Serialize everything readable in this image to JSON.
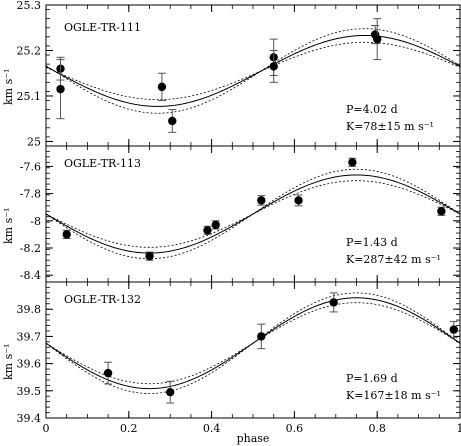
{
  "chart_data": [
    {
      "type": "scatter",
      "title": "OGLE-TR-111",
      "ylabel": "km s⁻¹",
      "xlabel": "",
      "xlim": [
        0,
        1
      ],
      "ylim": [
        24.99,
        25.3
      ],
      "yticks": [
        25,
        25.1,
        25.2,
        25.3
      ],
      "ytick_labels": [
        "25",
        "25.1",
        "25.2",
        "25.3"
      ],
      "annotations": [
        "P=4.02 d",
        "K=78±15 m s⁻¹"
      ],
      "fit": {
        "gamma": 25.155,
        "K": 0.078,
        "K_err": 0.015,
        "phase_shift": 0.52
      },
      "points": [
        {
          "x": 0.035,
          "y": 25.16,
          "err": 0.025
        },
        {
          "x": 0.035,
          "y": 25.115,
          "err": 0.065
        },
        {
          "x": 0.28,
          "y": 25.12,
          "err": 0.03
        },
        {
          "x": 0.305,
          "y": 25.045,
          "err": 0.025
        },
        {
          "x": 0.55,
          "y": 25.185,
          "err": 0.04
        },
        {
          "x": 0.55,
          "y": 25.165,
          "err": 0.035
        },
        {
          "x": 0.795,
          "y": 25.235,
          "err": 0.02
        },
        {
          "x": 0.8,
          "y": 25.225,
          "err": 0.045
        }
      ]
    },
    {
      "type": "scatter",
      "title": "OGLE-TR-113",
      "ylabel": "km s⁻¹",
      "xlabel": "",
      "xlim": [
        0,
        1
      ],
      "ylim": [
        -8.45,
        -7.45
      ],
      "yticks": [
        -8.4,
        -8.2,
        -8,
        -7.8,
        -7.6
      ],
      "ytick_labels": [
        "-8.4",
        "-8.2",
        "-8",
        "-7.8",
        "-7.6"
      ],
      "annotations": [
        "P=1.43 d",
        "K=287±42 m s⁻¹"
      ],
      "fit": {
        "gamma": -7.95,
        "K": 0.287,
        "K_err": 0.042,
        "phase_shift": 0.5
      },
      "points": [
        {
          "x": 0.05,
          "y": -8.1,
          "err": 0.03
        },
        {
          "x": 0.25,
          "y": -8.26,
          "err": 0.03
        },
        {
          "x": 0.39,
          "y": -8.07,
          "err": 0.03
        },
        {
          "x": 0.41,
          "y": -8.03,
          "err": 0.03
        },
        {
          "x": 0.52,
          "y": -7.85,
          "err": 0.035
        },
        {
          "x": 0.61,
          "y": -7.85,
          "err": 0.04
        },
        {
          "x": 0.74,
          "y": -7.57,
          "err": 0.03
        },
        {
          "x": 0.955,
          "y": -7.93,
          "err": 0.03
        }
      ]
    },
    {
      "type": "scatter",
      "title": "OGLE-TR-132",
      "ylabel": "km s⁻¹",
      "xlabel": "phase",
      "xlim": [
        0,
        1
      ],
      "ylim": [
        39.4,
        39.9
      ],
      "yticks": [
        39.4,
        39.5,
        39.6,
        39.7,
        39.8
      ],
      "ytick_labels": [
        "39.4",
        "39.5",
        "39.6",
        "39.7",
        "39.8"
      ],
      "xticks": [
        0,
        0.2,
        0.4,
        0.6,
        0.8,
        1
      ],
      "xtick_labels": [
        "0",
        "0.2",
        "0.4",
        "0.6",
        "0.8",
        "1"
      ],
      "annotations": [
        "P=1.69 d",
        "K=167±18 m s⁻¹"
      ],
      "fit": {
        "gamma": 39.675,
        "K": 0.167,
        "K_err": 0.018,
        "phase_shift": 0.5
      },
      "points": [
        {
          "x": 0.15,
          "y": 39.565,
          "err": 0.04
        },
        {
          "x": 0.3,
          "y": 39.495,
          "err": 0.04
        },
        {
          "x": 0.52,
          "y": 39.7,
          "err": 0.045
        },
        {
          "x": 0.695,
          "y": 39.825,
          "err": 0.035
        },
        {
          "x": 0.985,
          "y": 39.725,
          "err": 0.03
        }
      ]
    }
  ]
}
